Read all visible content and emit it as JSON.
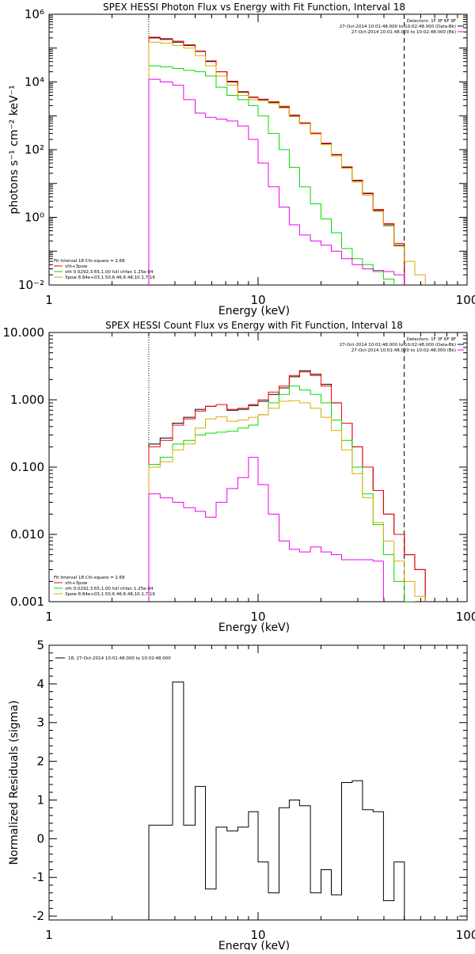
{
  "chart_data": [
    {
      "type": "line",
      "title": "SPEX HESSI Photon Flux vs Energy with Fit Function, Interval 18",
      "xlabel": "Energy (keV)",
      "ylabel": "photons s⁻¹ cm⁻² keV⁻¹",
      "xscale": "log",
      "yscale": "log",
      "xlim": [
        1,
        100
      ],
      "ylim": [
        0.01,
        1000000
      ],
      "x_tick_labels": [
        "1",
        "10",
        "100"
      ],
      "y_ticks": [
        0.01,
        1,
        100,
        10000,
        1000000
      ],
      "y_tick_labels": [
        "10⁻²",
        "10⁰",
        "10²",
        "10⁴",
        "10⁶"
      ],
      "legend_top": {
        "placement": "top-right",
        "lines": [
          "Detectors: 1F 3F 6F 9F",
          "27-Oct-2014 10:01:48.000 to 10:02:48.000 (Data-Bk)",
          "27-Oct-2014 10:01:48.000 to 10:02:48.000 (Bk)"
        ]
      },
      "legend_bottom": {
        "placement": "bottom-left",
        "lines": [
          "Fit Interval 18    Chi-square = 2.68",
          "vth+3pow",
          "vth 0.0292,3.65,1.00  full chfan 1.25e-04",
          "3pow 8.84e+03,1.50,6.46,6.48,10.1,7.19"
        ]
      },
      "edges": [
        3,
        3.4,
        3.9,
        4.4,
        5,
        5.6,
        6.3,
        7.1,
        8,
        9,
        10,
        11.2,
        12.6,
        14.1,
        15.8,
        17.8,
        20,
        22.4,
        25.1,
        28.2,
        31.6,
        35.5,
        39.8,
        44.7,
        50.1,
        56.2,
        63.1,
        70.8
      ],
      "series": [
        {
          "name": "Data-Bk",
          "color": "#000000",
          "values": [
            200000,
            180000,
            150000,
            120000,
            80000,
            40000,
            20000,
            10000,
            5000,
            3500,
            3000,
            2500,
            1800,
            1000,
            600,
            300,
            150,
            70,
            30,
            12,
            5,
            1.6,
            0.6,
            0.15,
            null,
            null,
            null
          ]
        },
        {
          "name": "vth+3pow",
          "color": "#ff0000",
          "values": [
            210000,
            190000,
            160000,
            125000,
            82000,
            42000,
            20000,
            10500,
            5200,
            3600,
            3100,
            2600,
            1900,
            1050,
            620,
            310,
            155,
            72,
            31,
            12.5,
            5.2,
            1.7,
            0.65,
            0.17,
            null,
            null,
            null
          ]
        },
        {
          "name": "vth",
          "color": "#00dd00",
          "values": [
            30000,
            28000,
            25000,
            22000,
            20000,
            15000,
            7000,
            4000,
            3000,
            2000,
            1000,
            300,
            100,
            30,
            8,
            2.5,
            0.9,
            0.35,
            0.12,
            0.06,
            0.04,
            0.025,
            0.015,
            0.008,
            null,
            null,
            null
          ]
        },
        {
          "name": "3pow",
          "color": "#ddaa00",
          "values": [
            150000,
            140000,
            120000,
            100000,
            60000,
            30000,
            15000,
            8000,
            4000,
            3000,
            2800,
            2300,
            1700,
            950,
            580,
            290,
            140,
            65,
            28,
            11,
            4.5,
            1.5,
            0.55,
            0.14,
            0.05,
            0.02,
            0.008
          ]
        },
        {
          "name": "Bk",
          "color": "#ee00ee",
          "values": [
            12000,
            10000,
            8000,
            3000,
            1200,
            900,
            800,
            700,
            500,
            200,
            40,
            8,
            2,
            0.6,
            0.3,
            0.2,
            0.15,
            0.1,
            0.06,
            0.04,
            0.03,
            0.027,
            0.025,
            0.02,
            null,
            null,
            null
          ]
        }
      ],
      "vlines": [
        {
          "x": 3,
          "style": "dotted"
        },
        {
          "x": 50,
          "style": "dashed"
        }
      ]
    },
    {
      "type": "line",
      "title": "SPEX HESSI Count Flux vs Energy with Fit Function, Interval 18",
      "xlabel": "Energy (keV)",
      "xscale": "log",
      "yscale": "log",
      "xlim": [
        1,
        100
      ],
      "ylim": [
        0.001,
        10
      ],
      "x_tick_labels": [
        "1",
        "10",
        "100"
      ],
      "y_ticks": [
        0.001,
        0.01,
        0.1,
        1,
        10
      ],
      "y_tick_labels": [
        "0.001",
        "0.010",
        "0.100",
        "1.000",
        "10.000"
      ],
      "legend_top": {
        "placement": "top-right",
        "lines": [
          "Detectors: 1F 3F 6F 9F",
          "27-Oct-2014 10:01:48.000 to 10:02:48.000 (Data-Bk)",
          "27-Oct-2014 10:01:48.000 to 10:02:48.000 (Bk)"
        ]
      },
      "legend_bottom": {
        "placement": "bottom-left",
        "lines": [
          "Fit Interval 18    Chi-square = 2.68",
          "vth+3pow",
          "vth 0.0292,3.65,1.00  full chfan 1.25e-04",
          "3pow 8.84e+03,1.50,6.46,6.48,10.1,7.19"
        ]
      },
      "edges": [
        3,
        3.4,
        3.9,
        4.4,
        5,
        5.6,
        6.3,
        7.1,
        8,
        9,
        10,
        11.2,
        12.6,
        14.1,
        15.8,
        17.8,
        20,
        22.4,
        25.1,
        28.2,
        31.6,
        35.5,
        39.8,
        44.7,
        50.1,
        56.2,
        63.1,
        70.8
      ],
      "series": [
        {
          "name": "Data-Bk",
          "color": "#000000",
          "values": [
            0.22,
            0.27,
            0.45,
            0.55,
            0.72,
            0.8,
            0.85,
            0.7,
            0.72,
            0.82,
            0.95,
            1.2,
            1.5,
            2.2,
            2.7,
            2.4,
            1.7,
            0.9,
            0.45,
            0.2,
            0.1,
            0.045,
            0.02,
            0.01,
            0.005,
            0.003,
            null
          ]
        },
        {
          "name": "vth+3pow",
          "color": "#ff0000",
          "values": [
            0.2,
            0.25,
            0.42,
            0.52,
            0.68,
            0.8,
            0.85,
            0.72,
            0.75,
            0.85,
            1.0,
            1.3,
            1.6,
            2.3,
            2.6,
            2.3,
            1.6,
            0.9,
            0.45,
            0.2,
            0.1,
            0.045,
            0.02,
            0.01,
            0.005,
            0.003,
            null
          ]
        },
        {
          "name": "vth",
          "color": "#00dd00",
          "values": [
            0.11,
            0.14,
            0.22,
            0.25,
            0.3,
            0.32,
            0.33,
            0.34,
            0.38,
            0.42,
            0.6,
            0.9,
            1.2,
            1.6,
            1.4,
            1.2,
            0.9,
            0.5,
            0.25,
            0.1,
            0.04,
            0.014,
            0.005,
            0.002,
            0.001,
            null,
            null
          ]
        },
        {
          "name": "3pow",
          "color": "#ddaa00",
          "values": [
            0.1,
            0.12,
            0.18,
            0.22,
            0.38,
            0.52,
            0.56,
            0.48,
            0.5,
            0.55,
            0.6,
            0.75,
            0.95,
            0.97,
            0.9,
            0.75,
            0.55,
            0.35,
            0.18,
            0.08,
            0.035,
            0.015,
            0.008,
            0.004,
            0.002,
            0.0012,
            null
          ]
        },
        {
          "name": "Bk",
          "color": "#ee00ee",
          "values": [
            0.04,
            0.035,
            0.03,
            0.025,
            0.022,
            0.018,
            0.03,
            0.048,
            0.07,
            0.14,
            0.055,
            0.02,
            0.008,
            0.006,
            0.0055,
            0.0065,
            0.0055,
            0.005,
            0.0042,
            0.0042,
            0.0042,
            0.004,
            null,
            null,
            null,
            null,
            null
          ]
        }
      ],
      "vlines": [
        {
          "x": 3,
          "style": "dotted"
        },
        {
          "x": 50,
          "style": "dashed"
        }
      ]
    },
    {
      "type": "line",
      "title": "",
      "xlabel": "Energy (keV)",
      "ylabel": "Normalized Residuals (sigma)",
      "xscale": "log",
      "yscale": "linear",
      "xlim": [
        1,
        100
      ],
      "ylim": [
        -2.1,
        5
      ],
      "x_tick_labels": [
        "1",
        "10",
        "100"
      ],
      "y_ticks": [
        -2,
        -1,
        0,
        1,
        2,
        3,
        4,
        5
      ],
      "y_tick_labels": [
        "-2",
        "-1",
        "0",
        "1",
        "2",
        "3",
        "4",
        "5"
      ],
      "legend_top": {
        "placement": "top-left",
        "lines": [
          "18, 27-Oct-2014 10:01:48.000 to 10:02:48.000"
        ]
      },
      "edges": [
        3,
        3.4,
        3.9,
        4.4,
        5,
        5.6,
        6.3,
        7.1,
        8,
        9,
        10,
        11.2,
        12.6,
        14.1,
        15.8,
        17.8,
        20,
        22.4,
        25.1,
        28.2,
        31.6,
        35.5,
        39.8,
        44.7,
        50.1
      ],
      "series": [
        {
          "name": "residuals",
          "color": "#000000",
          "values": [
            0.35,
            0.35,
            4.05,
            0.35,
            1.35,
            -1.3,
            0.3,
            0.2,
            0.3,
            0.7,
            -0.6,
            -1.4,
            0.8,
            1.0,
            0.85,
            -1.4,
            -0.8,
            -1.45,
            1.45,
            1.5,
            0.75,
            0.7,
            -1.6,
            -0.6
          ]
        }
      ]
    }
  ]
}
